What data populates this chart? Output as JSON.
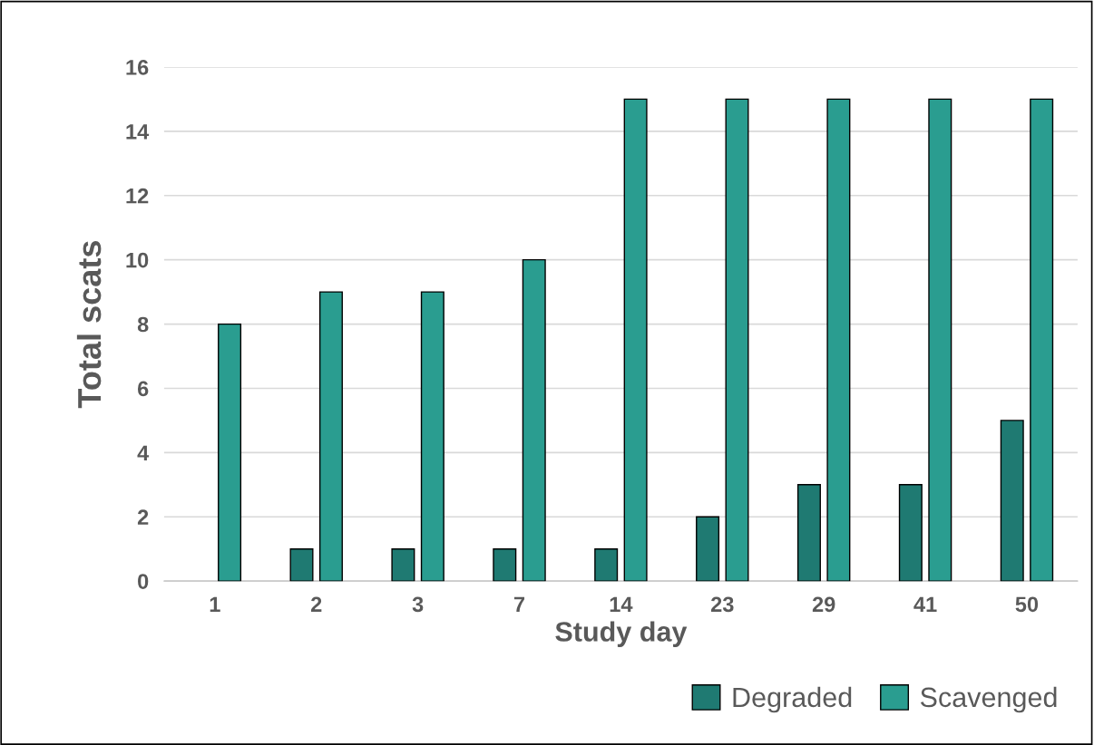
{
  "chart_data": {
    "type": "bar",
    "xlabel": "Study day",
    "ylabel": "Total scats",
    "categories": [
      "1",
      "2",
      "3",
      "7",
      "14",
      "23",
      "29",
      "41",
      "50"
    ],
    "series": [
      {
        "name": "Degraded",
        "color": "#1f7a72",
        "values": [
          0,
          1,
          1,
          1,
          1,
          2,
          3,
          3,
          5
        ]
      },
      {
        "name": "Scavenged",
        "color": "#2a9d90",
        "values": [
          8,
          9,
          9,
          10,
          15,
          15,
          15,
          15,
          15
        ]
      }
    ],
    "ylim": [
      0,
      16
    ],
    "yticks": [
      0,
      2,
      4,
      6,
      8,
      10,
      12,
      14,
      16
    ],
    "grid": "y",
    "legend": "bottom right"
  }
}
